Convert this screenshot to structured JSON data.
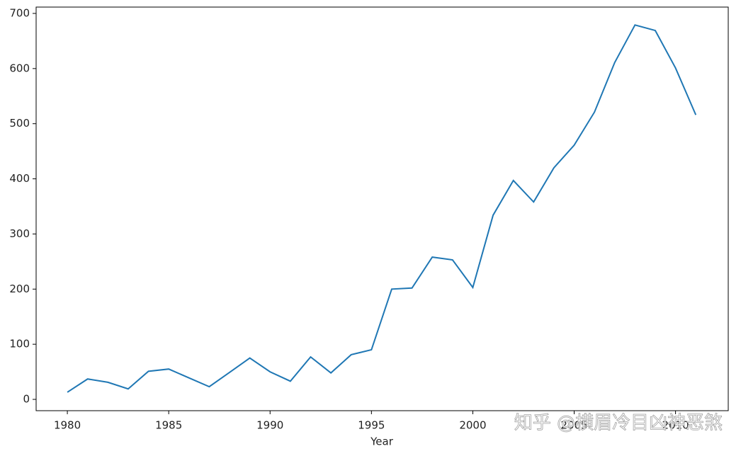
{
  "chart_data": {
    "type": "line",
    "x": [
      1980,
      1981,
      1982,
      1983,
      1984,
      1985,
      1986,
      1987,
      1988,
      1989,
      1990,
      1991,
      1992,
      1993,
      1994,
      1995,
      1996,
      1997,
      1998,
      1999,
      2000,
      2001,
      2002,
      2003,
      2004,
      2005,
      2006,
      2007,
      2008,
      2009,
      2010,
      2011
    ],
    "series": [
      {
        "color": "#1f77b4",
        "values": [
          13,
          37,
          31,
          19,
          51,
          55,
          39,
          23,
          49,
          75,
          50,
          33,
          77,
          48,
          81,
          90,
          200,
          202,
          258,
          253,
          203,
          334,
          397,
          358,
          420,
          461,
          521,
          611,
          679,
          669,
          601,
          516
        ]
      }
    ],
    "xlabel": "Year",
    "xlim": [
      1978.46,
      2012.6
    ],
    "xticks": [
      1980,
      1985,
      1990,
      1995,
      2000,
      2005,
      2010
    ],
    "ylim": [
      -20.5,
      711.5
    ],
    "yticks": [
      0,
      100,
      200,
      300,
      400,
      500,
      600,
      700
    ],
    "grid": false,
    "watermark": "知乎 @横眉冷目凶神恶煞"
  }
}
